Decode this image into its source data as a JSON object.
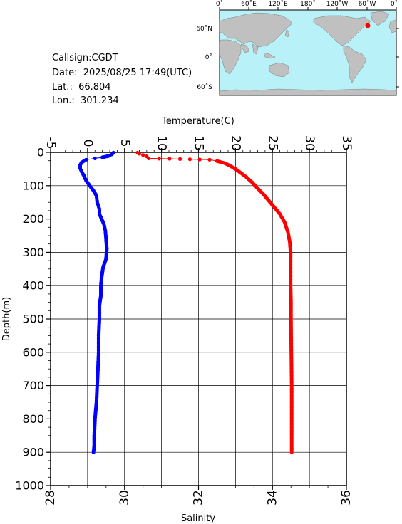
{
  "info": {
    "callsign": "Callsign:CGDT",
    "date": "Date:  2025/08/25 17:49(UTC)",
    "lat": "Lat.:  66.804",
    "lon": "Lon.:  301.234"
  },
  "map": {
    "lon_labels": [
      "0˚",
      "60˚E",
      "120˚E",
      "180˚",
      "120˚W",
      "60˚W",
      "0˚"
    ],
    "lat_labels": [
      "60˚N",
      "0˚",
      "60˚S"
    ],
    "ocean_color": "#b8f2f8",
    "land_color": "#c0c0c0",
    "marker_color": "#ff0000"
  },
  "chart_data": {
    "type": "line",
    "top_axis": {
      "label": "Temperature(C)",
      "range": [
        -5,
        35
      ],
      "ticks": [
        "-5",
        "0",
        "5",
        "10",
        "15",
        "20",
        "25",
        "30",
        "35"
      ]
    },
    "bottom_axis": {
      "label": "Salinity",
      "range": [
        28,
        36
      ],
      "ticks": [
        "28",
        "30",
        "32",
        "34",
        "36"
      ]
    },
    "left_axis": {
      "label": "Depth(m)",
      "range": [
        0,
        1000
      ],
      "inverted": true,
      "ticks": [
        "0",
        "100",
        "200",
        "300",
        "400",
        "500",
        "600",
        "700",
        "800",
        "900",
        "1000"
      ]
    },
    "grid": true,
    "series": [
      {
        "color": "#ff0000",
        "axis": "salinity",
        "points": [
          [
            30.35,
            1
          ],
          [
            30.4,
            4
          ],
          [
            30.5,
            8
          ],
          [
            30.6,
            12
          ],
          [
            30.65,
            18
          ],
          [
            31.5,
            20
          ],
          [
            32.3,
            22
          ],
          [
            32.5,
            26
          ],
          [
            32.7,
            32
          ],
          [
            32.85,
            40
          ],
          [
            33.0,
            50
          ],
          [
            33.15,
            62
          ],
          [
            33.3,
            75
          ],
          [
            33.45,
            90
          ],
          [
            33.6,
            108
          ],
          [
            33.75,
            125
          ],
          [
            33.9,
            145
          ],
          [
            34.05,
            165
          ],
          [
            34.2,
            185
          ],
          [
            34.33,
            210
          ],
          [
            34.42,
            240
          ],
          [
            34.47,
            270
          ],
          [
            34.49,
            300
          ],
          [
            34.49,
            350
          ],
          [
            34.49,
            400
          ],
          [
            34.5,
            450
          ],
          [
            34.5,
            500
          ],
          [
            34.51,
            600
          ],
          [
            34.52,
            700
          ],
          [
            34.52,
            800
          ],
          [
            34.52,
            900
          ]
        ]
      },
      {
        "color": "#0000ff",
        "axis": "temperature",
        "points": [
          [
            3.5,
            1
          ],
          [
            3.3,
            6
          ],
          [
            3.0,
            10
          ],
          [
            2.0,
            15
          ],
          [
            1.0,
            18
          ],
          [
            -0.2,
            22
          ],
          [
            -0.8,
            30
          ],
          [
            -1.0,
            38
          ],
          [
            -1.0,
            48
          ],
          [
            -0.8,
            58
          ],
          [
            -0.5,
            70
          ],
          [
            -0.2,
            85
          ],
          [
            0.3,
            100
          ],
          [
            0.8,
            115
          ],
          [
            1.2,
            130
          ],
          [
            1.3,
            150
          ],
          [
            1.6,
            170
          ],
          [
            1.6,
            185
          ],
          [
            1.9,
            200
          ],
          [
            2.2,
            215
          ],
          [
            2.4,
            235
          ],
          [
            2.5,
            260
          ],
          [
            2.6,
            290
          ],
          [
            2.5,
            320
          ],
          [
            2.1,
            345
          ],
          [
            1.9,
            375
          ],
          [
            1.8,
            400
          ],
          [
            1.8,
            430
          ],
          [
            1.6,
            460
          ],
          [
            1.6,
            480
          ],
          [
            1.6,
            500
          ],
          [
            1.5,
            550
          ],
          [
            1.5,
            600
          ],
          [
            1.4,
            650
          ],
          [
            1.3,
            700
          ],
          [
            1.2,
            750
          ],
          [
            1.0,
            800
          ],
          [
            0.9,
            850
          ],
          [
            0.9,
            880
          ],
          [
            0.8,
            900
          ]
        ]
      }
    ]
  }
}
